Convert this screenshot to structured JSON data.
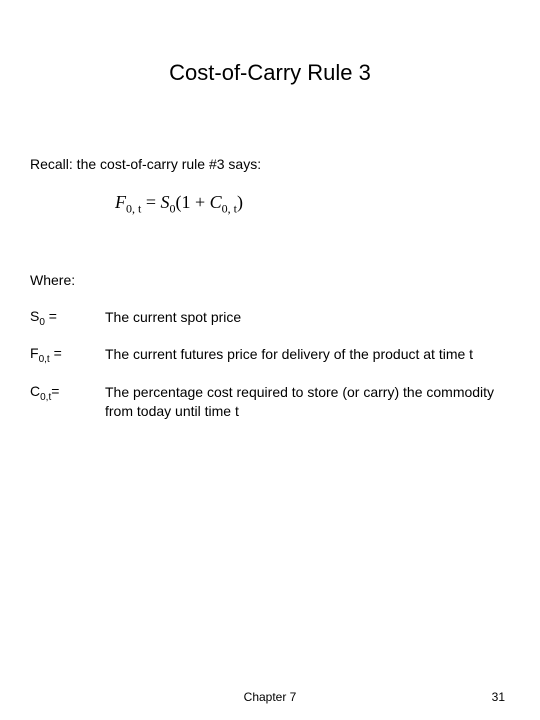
{
  "title": "Cost-of-Carry Rule 3",
  "recall": "Recall: the cost-of-carry rule #3 says:",
  "formula": {
    "lhs_var": "F",
    "lhs_sub": "0, t",
    "eq": " = ",
    "rhs_var1": "S",
    "rhs_sub1": "0",
    "rhs_open": "(1 + ",
    "rhs_var2": "C",
    "rhs_sub2": "0, t",
    "rhs_close": ")"
  },
  "where": "Where:",
  "definitions": [
    {
      "sym_base": "S",
      "sym_sub": "0",
      "sym_tail": " =",
      "desc": "The current spot price"
    },
    {
      "sym_base": "F",
      "sym_sub": "0,t",
      "sym_tail": " =",
      "desc": "The current futures price for delivery of the product at time t"
    },
    {
      "sym_base": "C",
      "sym_sub": "0,t",
      "sym_tail": "=",
      "desc": "The percentage cost required to store (or carry) the commodity from today until time t"
    }
  ],
  "footer": {
    "chapter": "Chapter 7",
    "page": "31"
  }
}
